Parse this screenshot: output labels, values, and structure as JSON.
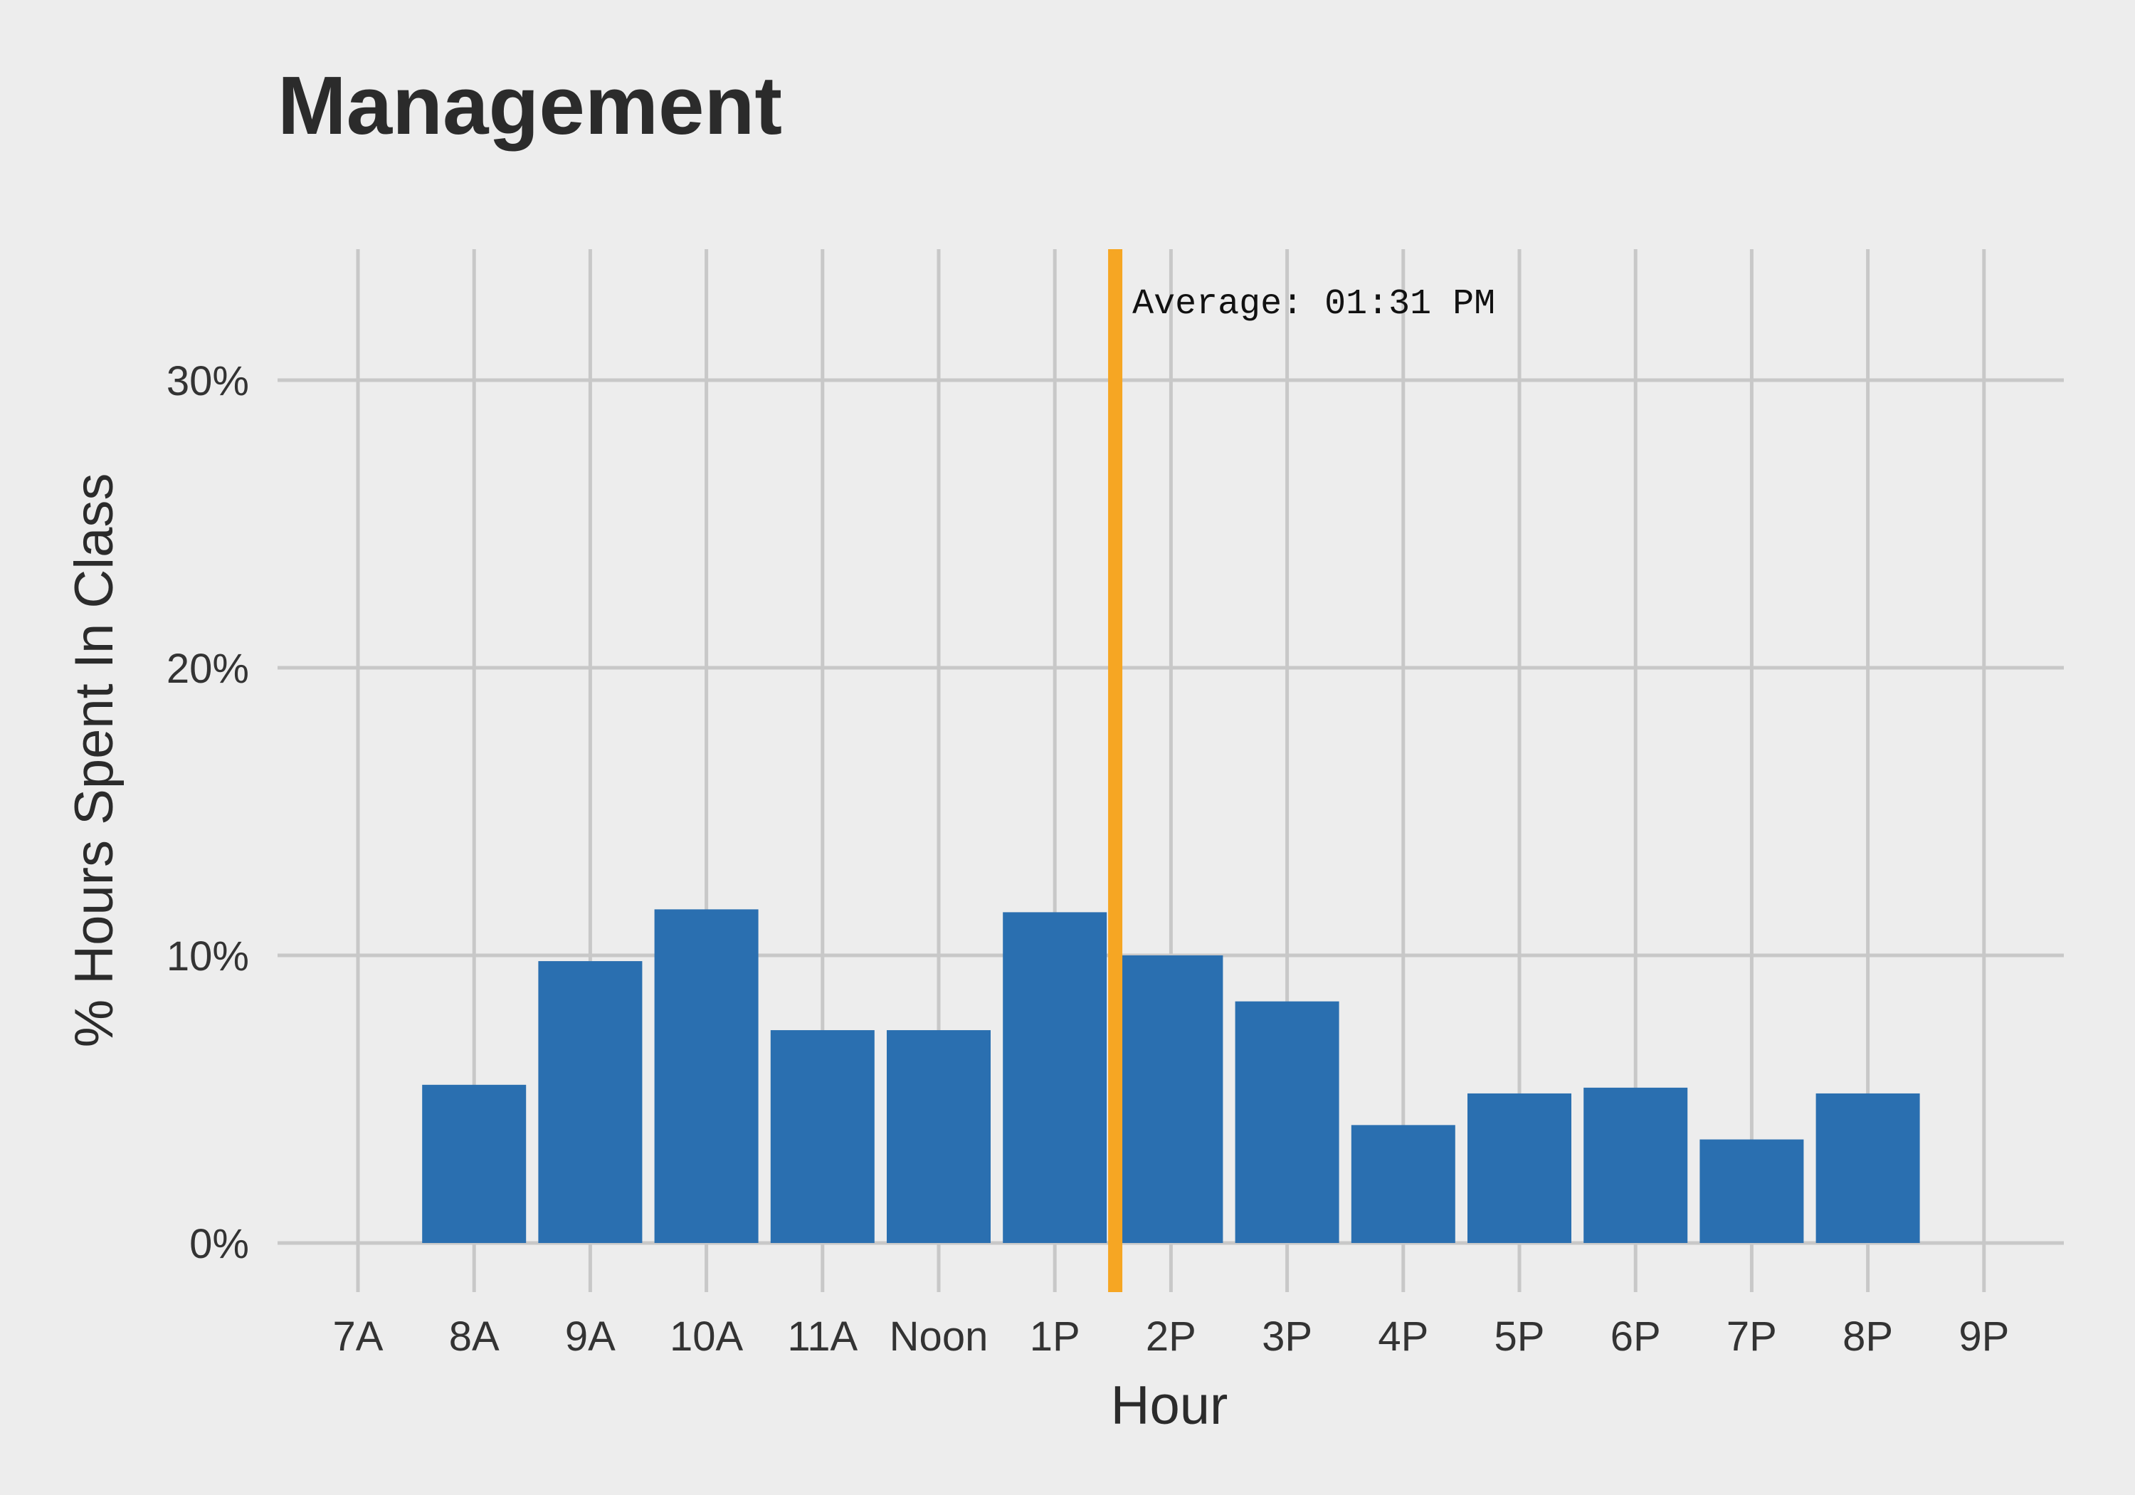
{
  "chart_data": {
    "type": "bar",
    "title": "Management",
    "xlabel": "Hour",
    "ylabel": "% Hours Spent In Class",
    "categories": [
      "7A",
      "8A",
      "9A",
      "10A",
      "11A",
      "Noon",
      "1P",
      "2P",
      "3P",
      "4P",
      "5P",
      "6P",
      "7P",
      "8P",
      "9P"
    ],
    "values": [
      0,
      5.5,
      9.8,
      11.6,
      7.4,
      7.4,
      11.5,
      10.0,
      8.4,
      4.1,
      5.2,
      5.4,
      3.6,
      5.2,
      0
    ],
    "ylim": [
      0,
      34
    ],
    "yticks": [
      0,
      10,
      20,
      30
    ],
    "ytick_labels": [
      "0%",
      "10%",
      "20%",
      "30%"
    ],
    "grid": true,
    "bar_color": "#2a6fb0",
    "annotation": {
      "label": "Average: 01:31 PM",
      "x_hour": 13.52,
      "color": "#f6a623"
    }
  }
}
